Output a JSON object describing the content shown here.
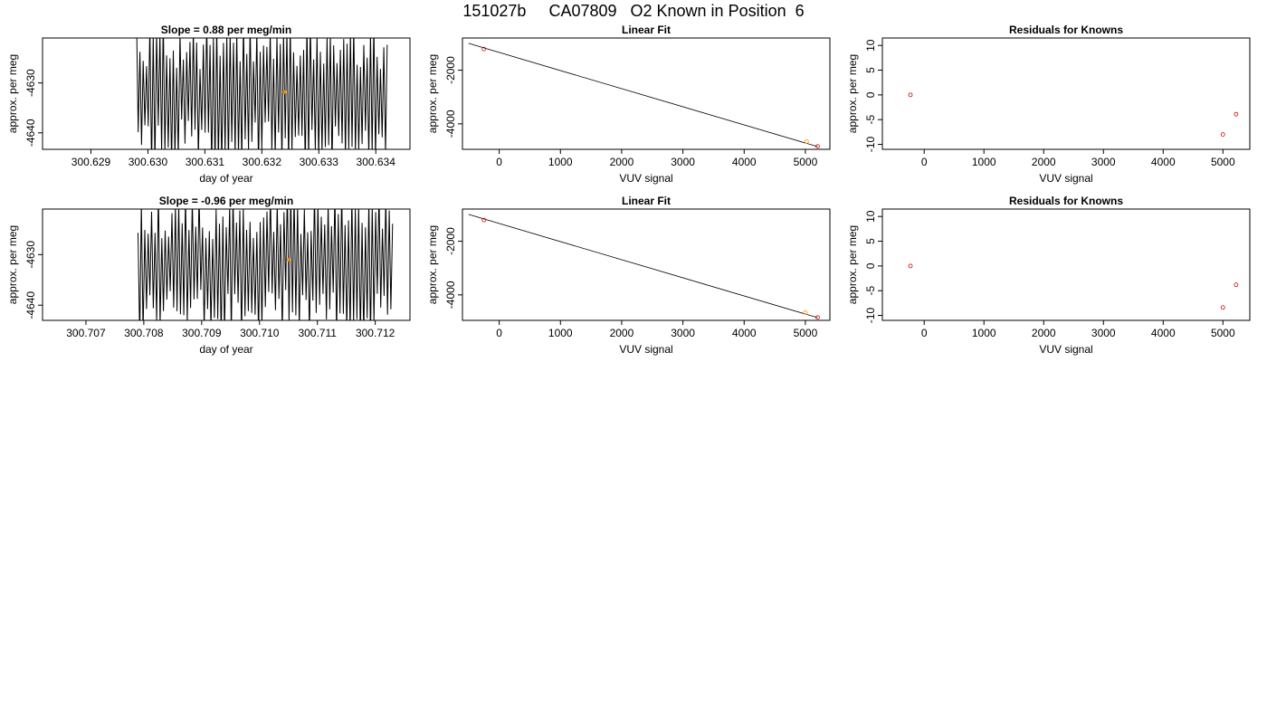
{
  "page": {
    "title": "151027b     CA07809   O2 Known in Position  6"
  },
  "chart_data": [
    {
      "id": "slope1",
      "type": "line",
      "title": "Slope =  0.88  per meg/min",
      "xlabel": "day of year",
      "ylabel": "approx. per meg",
      "xticks": [
        300.629,
        300.63,
        300.631,
        300.632,
        300.633,
        300.634
      ],
      "xtick_labels": [
        "300.629",
        "300.630",
        "300.631",
        "300.632",
        "300.633",
        "300.634"
      ],
      "yticks": [
        -4640,
        -4630
      ],
      "ytick_labels": [
        "-4640",
        "-4630"
      ],
      "xlim": [
        300.62815,
        300.6346
      ],
      "ylim": [
        -4643.3,
        -4621.0
      ],
      "series_x_range": [
        300.6298,
        300.6342
      ],
      "series_note": "dense oscillating raw trace",
      "highlight": {
        "x": 300.6324,
        "y": -4631.8,
        "color": "#ff8c00"
      },
      "line_color": "#000000"
    },
    {
      "id": "fit1",
      "type": "line",
      "title": "Linear Fit",
      "xlabel": "VUV signal",
      "ylabel": "approx. per meg",
      "xticks": [
        0,
        1000,
        2000,
        3000,
        4000,
        5000
      ],
      "xtick_labels": [
        "0",
        "1000",
        "2000",
        "3000",
        "4000",
        "5000"
      ],
      "yticks": [
        -4000,
        -2000
      ],
      "ytick_labels": [
        "-4000",
        "-2000"
      ],
      "xlim": [
        -600,
        5400
      ],
      "ylim": [
        -4950,
        -800
      ],
      "fit_line": {
        "x": [
          -500,
          5200
        ],
        "y": [
          -1000,
          -4850
        ]
      },
      "points": [
        {
          "x": -250,
          "y": -1210,
          "color": "#cc0000"
        },
        {
          "x": 5020,
          "y": -4660,
          "color": "#ff8c00"
        },
        {
          "x": 5200,
          "y": -4840,
          "color": "#cc0000"
        }
      ]
    },
    {
      "id": "resid1",
      "type": "scatter",
      "title": "Residuals for Knowns",
      "xlabel": "VUV signal",
      "ylabel": "approx. per meg",
      "xticks": [
        0,
        1000,
        2000,
        3000,
        4000,
        5000
      ],
      "xtick_labels": [
        "0",
        "1000",
        "2000",
        "3000",
        "4000",
        "5000"
      ],
      "yticks": [
        -10,
        -5,
        0,
        5,
        10
      ],
      "ytick_labels": [
        "-10",
        "-5",
        "0",
        "5",
        "10"
      ],
      "xlim": [
        -700,
        5450
      ],
      "ylim": [
        -11,
        11.5
      ],
      "points": [
        {
          "x": -230,
          "y": 0,
          "color": "#cc0000"
        },
        {
          "x": 5000,
          "y": -8,
          "color": "#cc0000"
        },
        {
          "x": 5220,
          "y": -3.9,
          "color": "#cc0000"
        }
      ]
    },
    {
      "id": "slope2",
      "type": "line",
      "title": "Slope =  -0.96  per meg/min",
      "xlabel": "day of year",
      "ylabel": "approx. per meg",
      "xticks": [
        300.707,
        300.708,
        300.709,
        300.71,
        300.711,
        300.712
      ],
      "xtick_labels": [
        "300.707",
        "300.708",
        "300.709",
        "300.710",
        "300.711",
        "300.712"
      ],
      "yticks": [
        -4640,
        -4630
      ],
      "ytick_labels": [
        "-4640",
        "-4630"
      ],
      "xlim": [
        300.70625,
        300.7126
      ],
      "ylim": [
        -4643.0,
        -4621.0
      ],
      "series_x_range": [
        300.7079,
        300.7123
      ],
      "series_note": "dense oscillating raw trace",
      "highlight": {
        "x": 300.7105,
        "y": -4631.0,
        "color": "#ff8c00"
      },
      "line_color": "#000000"
    },
    {
      "id": "fit2",
      "type": "line",
      "title": "Linear Fit",
      "xlabel": "VUV signal",
      "ylabel": "approx. per meg",
      "xticks": [
        0,
        1000,
        2000,
        3000,
        4000,
        5000
      ],
      "xtick_labels": [
        "0",
        "1000",
        "2000",
        "3000",
        "4000",
        "5000"
      ],
      "yticks": [
        -4000,
        -2000
      ],
      "ytick_labels": [
        "-4000",
        "-2000"
      ],
      "xlim": [
        -600,
        5400
      ],
      "ylim": [
        -4950,
        -800
      ],
      "fit_line": {
        "x": [
          -500,
          5200
        ],
        "y": [
          -1000,
          -4850
        ]
      },
      "points": [
        {
          "x": -250,
          "y": -1210,
          "color": "#cc0000"
        },
        {
          "x": 5000,
          "y": -4660,
          "color": "#ff8c00"
        },
        {
          "x": 5200,
          "y": -4840,
          "color": "#cc0000"
        }
      ]
    },
    {
      "id": "resid2",
      "type": "scatter",
      "title": "Residuals for Knowns",
      "xlabel": "VUV signal",
      "ylabel": "approx. per meg",
      "xticks": [
        0,
        1000,
        2000,
        3000,
        4000,
        5000
      ],
      "xtick_labels": [
        "0",
        "1000",
        "2000",
        "3000",
        "4000",
        "5000"
      ],
      "yticks": [
        -10,
        -5,
        0,
        5,
        10
      ],
      "ytick_labels": [
        "-10",
        "-5",
        "0",
        "5",
        "10"
      ],
      "xlim": [
        -700,
        5450
      ],
      "ylim": [
        -11,
        11.5
      ],
      "points": [
        {
          "x": -230,
          "y": 0,
          "color": "#cc0000"
        },
        {
          "x": 5000,
          "y": -8.4,
          "color": "#cc0000"
        },
        {
          "x": 5220,
          "y": -3.8,
          "color": "#cc0000"
        }
      ]
    }
  ]
}
